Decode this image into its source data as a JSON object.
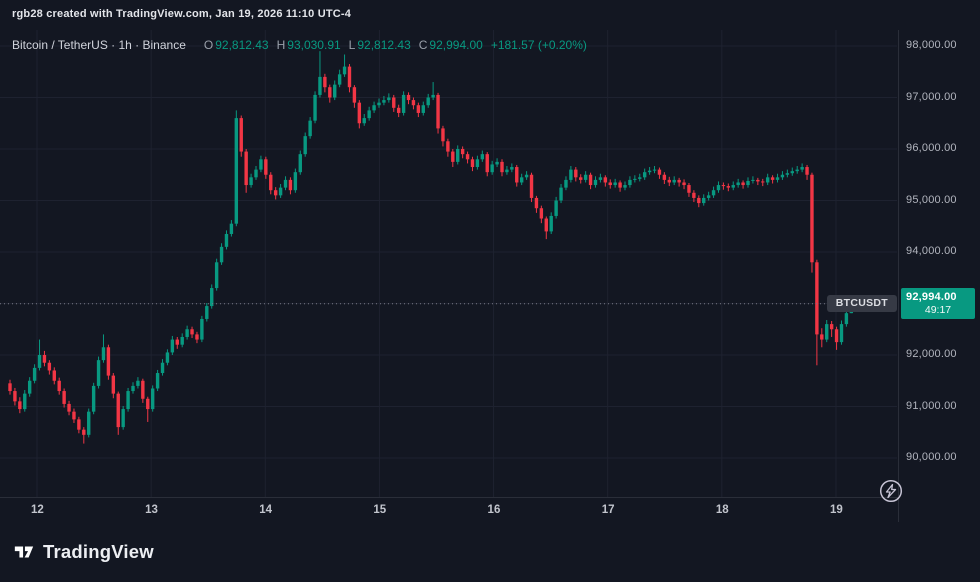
{
  "header": {
    "caption": "rgb28 created with TradingView.com, Jan 19, 2026 11:10 UTC-4"
  },
  "legend": {
    "title": "Bitcoin / TetherUS · 1h · Binance",
    "o_label": "O",
    "o": "92,812.43",
    "h_label": "H",
    "h": "93,030.91",
    "l_label": "L",
    "l": "92,812.43",
    "c_label": "C",
    "c": "92,994.00",
    "change": "+181.57 (+0.20%)"
  },
  "colors": {
    "up": "#089981",
    "down": "#f23645",
    "grid": "#1e2230",
    "axis_line": "#2a2e39",
    "price_line": "#787b86",
    "label_bg": "#089981"
  },
  "price_scale": {
    "labels": [
      {
        "text": "98,000.00",
        "value": 98000
      },
      {
        "text": "97,000.00",
        "value": 97000
      },
      {
        "text": "96,000.00",
        "value": 96000
      },
      {
        "text": "95,000.00",
        "value": 95000
      },
      {
        "text": "94,000.00",
        "value": 94000
      },
      {
        "text": "93,000.00",
        "value": 93000
      },
      {
        "text": "92,000.00",
        "value": 92000
      },
      {
        "text": "91,000.00",
        "value": 91000
      },
      {
        "text": "90,000.00",
        "value": 90000
      }
    ]
  },
  "time_scale": {
    "labels": [
      "12",
      "13",
      "14",
      "15",
      "16",
      "17",
      "18",
      "19"
    ]
  },
  "price_label": {
    "symbol": "BTCUSDT",
    "price": "92,994.00",
    "countdown": "49:17",
    "value": 92994
  },
  "footer": {
    "brand": "TradingView"
  },
  "chart_data": {
    "type": "candlestick",
    "symbol": "BTCUSDT",
    "pair": "Bitcoin / TetherUS",
    "interval": "1h",
    "exchange": "Binance",
    "last": {
      "open": 92812.43,
      "high": 93030.91,
      "low": 92812.43,
      "close": 92994.0,
      "change": 181.57,
      "change_pct": 0.2
    },
    "ylim": [
      89240,
      98310
    ],
    "x_day_ticks": [
      "12",
      "13",
      "14",
      "15",
      "16",
      "17",
      "18",
      "19"
    ],
    "candles": [
      [
        91450,
        91520,
        91230,
        91300
      ],
      [
        91300,
        91360,
        91020,
        91100
      ],
      [
        91100,
        91180,
        90870,
        90950
      ],
      [
        90950,
        91320,
        90900,
        91250
      ],
      [
        91250,
        91570,
        91190,
        91500
      ],
      [
        91500,
        91820,
        91450,
        91750
      ],
      [
        91750,
        92300,
        91700,
        92000
      ],
      [
        92000,
        92080,
        91780,
        91850
      ],
      [
        91850,
        91900,
        91620,
        91700
      ],
      [
        91700,
        91760,
        91430,
        91500
      ],
      [
        91500,
        91560,
        91230,
        91300
      ],
      [
        91300,
        91350,
        90980,
        91050
      ],
      [
        91050,
        91110,
        90830,
        90900
      ],
      [
        90900,
        90960,
        90680,
        90750
      ],
      [
        90750,
        90800,
        90480,
        90550
      ],
      [
        90550,
        90600,
        90280,
        90450
      ],
      [
        90450,
        90960,
        90400,
        90900
      ],
      [
        90900,
        91460,
        90850,
        91400
      ],
      [
        91400,
        91970,
        91350,
        91900
      ],
      [
        91900,
        92400,
        91850,
        92150
      ],
      [
        92150,
        92200,
        91520,
        91600
      ],
      [
        91600,
        91650,
        91160,
        91250
      ],
      [
        91250,
        91290,
        90450,
        90600
      ],
      [
        90600,
        91010,
        90550,
        90950
      ],
      [
        90950,
        91360,
        90900,
        91300
      ],
      [
        91300,
        91470,
        91250,
        91400
      ],
      [
        91400,
        91570,
        91350,
        91500
      ],
      [
        91500,
        91540,
        91070,
        91150
      ],
      [
        91150,
        91190,
        90700,
        90950
      ],
      [
        90950,
        91410,
        90900,
        91350
      ],
      [
        91350,
        91710,
        91300,
        91650
      ],
      [
        91650,
        91920,
        91600,
        91850
      ],
      [
        91850,
        92110,
        91800,
        92050
      ],
      [
        92050,
        92370,
        92000,
        92300
      ],
      [
        92300,
        92350,
        92120,
        92200
      ],
      [
        92200,
        92420,
        92150,
        92350
      ],
      [
        92350,
        92570,
        92300,
        92500
      ],
      [
        92500,
        92550,
        92330,
        92400
      ],
      [
        92400,
        92450,
        92230,
        92300
      ],
      [
        92300,
        92760,
        92250,
        92700
      ],
      [
        92700,
        93010,
        92650,
        92950
      ],
      [
        92950,
        93370,
        92900,
        93300
      ],
      [
        93300,
        93870,
        93250,
        93800
      ],
      [
        93800,
        94170,
        93750,
        94100
      ],
      [
        94100,
        94420,
        94050,
        94350
      ],
      [
        94350,
        94620,
        94300,
        94550
      ],
      [
        94550,
        96750,
        94500,
        96600
      ],
      [
        96600,
        96650,
        95850,
        95950
      ],
      [
        95950,
        96000,
        95150,
        95300
      ],
      [
        95300,
        95520,
        95250,
        95450
      ],
      [
        95450,
        95670,
        95400,
        95600
      ],
      [
        95600,
        95870,
        95550,
        95800
      ],
      [
        95800,
        95850,
        95420,
        95500
      ],
      [
        95500,
        95550,
        95120,
        95200
      ],
      [
        95200,
        95260,
        95020,
        95100
      ],
      [
        95100,
        95320,
        95050,
        95250
      ],
      [
        95250,
        95470,
        95200,
        95400
      ],
      [
        95400,
        95450,
        95120,
        95200
      ],
      [
        95200,
        95620,
        95150,
        95550
      ],
      [
        95550,
        95970,
        95500,
        95900
      ],
      [
        95900,
        96320,
        95850,
        96250
      ],
      [
        96250,
        96620,
        96200,
        96550
      ],
      [
        96550,
        97120,
        96500,
        97050
      ],
      [
        97050,
        97900,
        97000,
        97400
      ],
      [
        97400,
        97460,
        97100,
        97200
      ],
      [
        97200,
        97250,
        96900,
        97000
      ],
      [
        97000,
        97330,
        96950,
        97250
      ],
      [
        97250,
        97540,
        97200,
        97450
      ],
      [
        97450,
        97835,
        97400,
        97600
      ],
      [
        97600,
        97650,
        97100,
        97200
      ],
      [
        97200,
        97240,
        96800,
        96900
      ],
      [
        96900,
        96950,
        96400,
        96500
      ],
      [
        96500,
        96680,
        96450,
        96600
      ],
      [
        96600,
        96820,
        96550,
        96750
      ],
      [
        96750,
        96920,
        96700,
        96850
      ],
      [
        96850,
        96980,
        96800,
        96900
      ],
      [
        96900,
        97030,
        96850,
        96950
      ],
      [
        96950,
        97080,
        96900,
        97000
      ],
      [
        97000,
        97050,
        96720,
        96800
      ],
      [
        96800,
        96860,
        96620,
        96700
      ],
      [
        96700,
        97120,
        96650,
        97050
      ],
      [
        97050,
        97100,
        96870,
        96950
      ],
      [
        96950,
        97000,
        96770,
        96850
      ],
      [
        96850,
        96900,
        96620,
        96700
      ],
      [
        96700,
        96920,
        96650,
        96850
      ],
      [
        96850,
        97070,
        96800,
        97000
      ],
      [
        97000,
        97300,
        96950,
        97050
      ],
      [
        97050,
        97090,
        96300,
        96400
      ],
      [
        96400,
        96450,
        96050,
        96150
      ],
      [
        96150,
        96200,
        95850,
        95950
      ],
      [
        95950,
        96000,
        95650,
        95750
      ],
      [
        95750,
        96070,
        95700,
        96000
      ],
      [
        96000,
        96050,
        95820,
        95900
      ],
      [
        95900,
        95950,
        95720,
        95800
      ],
      [
        95800,
        95850,
        95570,
        95650
      ],
      [
        95650,
        95870,
        95600,
        95800
      ],
      [
        95800,
        95970,
        95750,
        95900
      ],
      [
        95900,
        95940,
        95470,
        95550
      ],
      [
        95550,
        95770,
        95500,
        95700
      ],
      [
        95700,
        95820,
        95650,
        95750
      ],
      [
        95750,
        95800,
        95470,
        95550
      ],
      [
        95550,
        95670,
        95500,
        95600
      ],
      [
        95600,
        95720,
        95550,
        95650
      ],
      [
        95650,
        95690,
        95270,
        95350
      ],
      [
        95350,
        95520,
        95300,
        95450
      ],
      [
        95450,
        95570,
        95400,
        95500
      ],
      [
        95500,
        95540,
        94970,
        95050
      ],
      [
        95050,
        95090,
        94760,
        94850
      ],
      [
        94850,
        94900,
        94560,
        94650
      ],
      [
        94650,
        94690,
        94250,
        94400
      ],
      [
        94400,
        94770,
        94350,
        94700
      ],
      [
        94700,
        95070,
        94650,
        95000
      ],
      [
        95000,
        95320,
        94950,
        95250
      ],
      [
        95250,
        95470,
        95200,
        95400
      ],
      [
        95400,
        95670,
        95350,
        95600
      ],
      [
        95600,
        95650,
        95370,
        95450
      ],
      [
        95450,
        95510,
        95330,
        95400
      ],
      [
        95400,
        95570,
        95350,
        95500
      ],
      [
        95500,
        95540,
        95220,
        95300
      ],
      [
        95300,
        95470,
        95250,
        95400
      ],
      [
        95400,
        95520,
        95350,
        95450
      ],
      [
        95450,
        95490,
        95270,
        95350
      ],
      [
        95350,
        95410,
        95230,
        95300
      ],
      [
        95300,
        95420,
        95250,
        95350
      ],
      [
        95350,
        95390,
        95170,
        95250
      ],
      [
        95250,
        95370,
        95200,
        95300
      ],
      [
        95300,
        95470,
        95250,
        95400
      ],
      [
        95400,
        95490,
        95350,
        95420
      ],
      [
        95420,
        95520,
        95370,
        95450
      ],
      [
        95450,
        95620,
        95400,
        95550
      ],
      [
        95550,
        95650,
        95500,
        95580
      ],
      [
        95580,
        95670,
        95530,
        95600
      ],
      [
        95600,
        95640,
        95420,
        95500
      ],
      [
        95500,
        95550,
        95320,
        95400
      ],
      [
        95400,
        95460,
        95280,
        95350
      ],
      [
        95350,
        95470,
        95300,
        95400
      ],
      [
        95400,
        95440,
        95270,
        95350
      ],
      [
        95350,
        95410,
        95220,
        95300
      ],
      [
        95300,
        95340,
        95070,
        95150
      ],
      [
        95150,
        95200,
        94970,
        95050
      ],
      [
        95050,
        95100,
        94870,
        94950
      ],
      [
        94950,
        95120,
        94900,
        95050
      ],
      [
        95050,
        95170,
        95000,
        95100
      ],
      [
        95100,
        95270,
        95050,
        95200
      ],
      [
        95200,
        95370,
        95150,
        95300
      ],
      [
        95300,
        95350,
        95210,
        95280
      ],
      [
        95280,
        95330,
        95180,
        95250
      ],
      [
        95250,
        95370,
        95200,
        95300
      ],
      [
        95300,
        95420,
        95250,
        95350
      ],
      [
        95350,
        95390,
        95230,
        95300
      ],
      [
        95300,
        95450,
        95250,
        95380
      ],
      [
        95380,
        95470,
        95330,
        95400
      ],
      [
        95400,
        95440,
        95300,
        95370
      ],
      [
        95370,
        95420,
        95280,
        95350
      ],
      [
        95350,
        95520,
        95300,
        95450
      ],
      [
        95450,
        95490,
        95330,
        95400
      ],
      [
        95400,
        95520,
        95350,
        95450
      ],
      [
        95450,
        95570,
        95400,
        95500
      ],
      [
        95500,
        95600,
        95450,
        95530
      ],
      [
        95530,
        95640,
        95480,
        95570
      ],
      [
        95570,
        95670,
        95520,
        95600
      ],
      [
        95600,
        95720,
        95550,
        95650
      ],
      [
        95650,
        95690,
        95400,
        95500
      ],
      [
        95500,
        95540,
        93600,
        93800
      ],
      [
        93800,
        93850,
        91800,
        92400
      ],
      [
        92400,
        92520,
        92150,
        92300
      ],
      [
        92300,
        92680,
        92250,
        92600
      ],
      [
        92600,
        92660,
        92350,
        92500
      ],
      [
        92500,
        92550,
        92100,
        92250
      ],
      [
        92250,
        92670,
        92200,
        92600
      ],
      [
        92600,
        92880,
        92550,
        92812
      ],
      [
        92812.43,
        93030.91,
        92812.43,
        92994.0
      ]
    ]
  }
}
